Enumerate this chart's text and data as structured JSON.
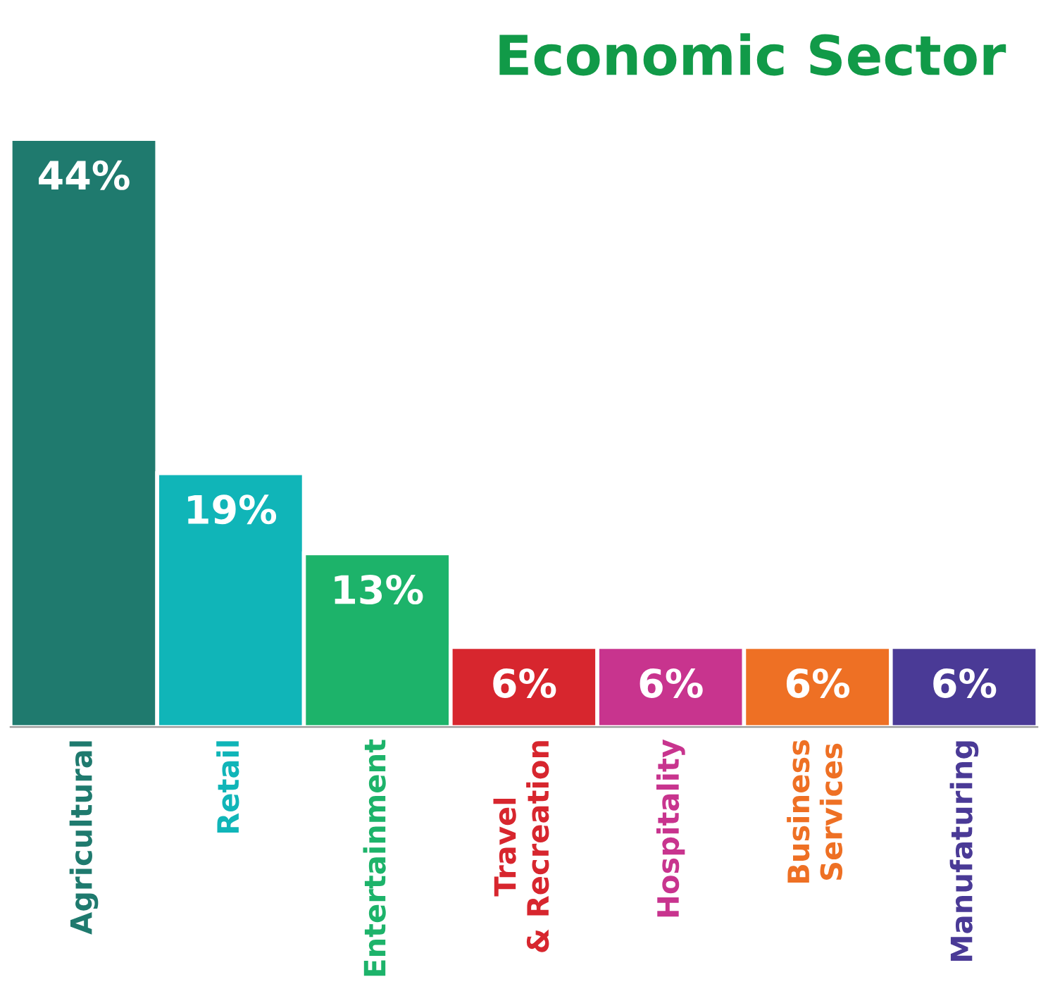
{
  "chart_data": {
    "type": "bar",
    "title": "Economic Sector",
    "categories": [
      "Agricultural",
      "Retail",
      "Entertainment",
      "Travel\n& Recreation",
      "Hospitality",
      "Business\nServices",
      "Manufaturing"
    ],
    "values": [
      44,
      19,
      13,
      6,
      6,
      6,
      6
    ],
    "colors": [
      "#1f7a6e",
      "#10b5b8",
      "#1db36a",
      "#d7262e",
      "#c8348e",
      "#ee7024",
      "#4a3a96"
    ],
    "value_labels": [
      "44%",
      "19%",
      "13%",
      "6%",
      "6%",
      "6%",
      "6%"
    ],
    "grid": false,
    "legend": false
  }
}
